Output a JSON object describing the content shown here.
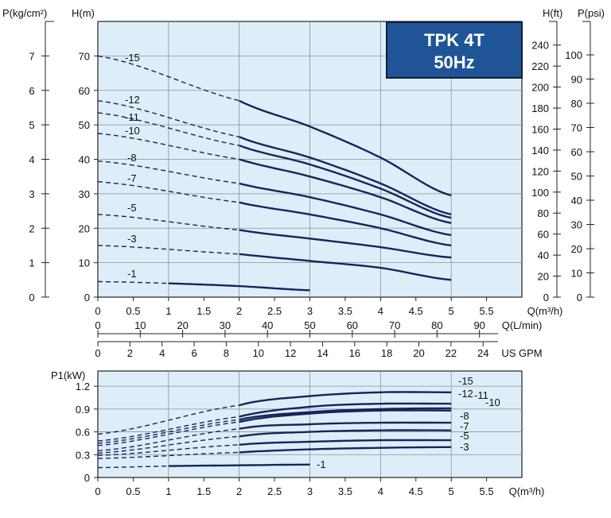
{
  "colors": {
    "plot_bg": "#deeef9",
    "grid": "#8a8f96",
    "curve": "#16255b",
    "title_bg": "#1f5596",
    "title_fg": "#ffffff"
  },
  "title": {
    "line1": "TPK 4T",
    "line2": "50Hz"
  },
  "head_chart": {
    "left_axis_labels": {
      "pressure": "P(kg/cm²)",
      "head": "H(m)"
    },
    "right_axis_labels": {
      "head_ft": "H(ft)",
      "pressure_psi": "P(psi)"
    },
    "pressure_ticks": [
      "0",
      "1",
      "2",
      "3",
      "4",
      "5",
      "6",
      "7"
    ],
    "head_ticks": [
      "0",
      "10",
      "20",
      "30",
      "40",
      "50",
      "60",
      "70"
    ],
    "ft_ticks": [
      "0",
      "20",
      "40",
      "60",
      "80",
      "100",
      "120",
      "140",
      "160",
      "180",
      "200",
      "220",
      "240"
    ],
    "psi_ticks": [
      "0",
      "10",
      "20",
      "30",
      "40",
      "50",
      "60",
      "70",
      "80",
      "90",
      "100"
    ],
    "x_m3h_ticks": [
      "0",
      "0.5",
      "1",
      "1.5",
      "2",
      "2.5",
      "3",
      "3.5",
      "4",
      "4.5",
      "5",
      "5.5"
    ],
    "x_m3h_label": "Q(m³/h)",
    "x_lmin_ticks": [
      "0",
      "10",
      "20",
      "30",
      "40",
      "50",
      "60",
      "70",
      "80",
      "90"
    ],
    "x_lmin_label": "Q(L/min)",
    "x_gpm_ticks": [
      "0",
      "2",
      "4",
      "6",
      "8",
      "10",
      "12",
      "14",
      "16",
      "18",
      "20",
      "22",
      "24"
    ],
    "x_gpm_label": "US GPM"
  },
  "power_chart": {
    "y_label": "P1(kW)",
    "y_ticks": [
      "0",
      "0.3",
      "0.6",
      "0.9",
      "1.2"
    ],
    "x_ticks": [
      "0",
      "0.5",
      "1",
      "1.5",
      "2",
      "2.5",
      "3",
      "3.5",
      "4",
      "4.5",
      "5",
      "5.5"
    ],
    "x_label": "Q(m³/h)"
  },
  "chart_data": [
    {
      "type": "line",
      "xlabel": "Q(m³/h)",
      "ylabel": "H(m)",
      "xlim": [
        0,
        6
      ],
      "ylim": [
        0,
        80
      ],
      "grid": true,
      "note": "dashed segment from Q=0 to start of solid curve",
      "series": [
        {
          "name": "-15",
          "dashed_until": 2,
          "solid_until": 5,
          "x": [
            0,
            2,
            3,
            4,
            5
          ],
          "y": [
            70,
            57,
            49.5,
            40.5,
            29.5
          ]
        },
        {
          "name": "-12",
          "dashed_until": 2,
          "solid_until": 5,
          "x": [
            0,
            2,
            3,
            4,
            5
          ],
          "y": [
            57,
            46.5,
            40.5,
            33,
            24
          ]
        },
        {
          "name": "-11",
          "dashed_until": 2,
          "solid_until": 5,
          "x": [
            0,
            2,
            3,
            4,
            5
          ],
          "y": [
            53.5,
            44,
            38.5,
            31.5,
            23
          ]
        },
        {
          "name": "-10",
          "dashed_until": 2,
          "solid_until": 5,
          "x": [
            0,
            2,
            3,
            4,
            5
          ],
          "y": [
            47.5,
            40,
            35,
            29,
            21.5
          ]
        },
        {
          "name": "-8",
          "dashed_until": 2,
          "solid_until": 5,
          "x": [
            0,
            2,
            3,
            4,
            5
          ],
          "y": [
            39.5,
            33,
            29,
            24,
            18
          ]
        },
        {
          "name": "-7",
          "dashed_until": 2,
          "solid_until": 5,
          "x": [
            0,
            2,
            3,
            4,
            5
          ],
          "y": [
            33.5,
            27.5,
            24,
            20,
            15
          ]
        },
        {
          "name": "-5",
          "dashed_until": 2,
          "solid_until": 5,
          "x": [
            0,
            2,
            3,
            4,
            5
          ],
          "y": [
            24,
            19.5,
            17,
            14.5,
            11.5
          ]
        },
        {
          "name": "-3",
          "dashed_until": 2,
          "solid_until": 5,
          "x": [
            0,
            2,
            3,
            4,
            5
          ],
          "y": [
            15,
            12.5,
            10.5,
            8.5,
            5
          ]
        },
        {
          "name": "-1",
          "dashed_until": 1,
          "solid_until": 3,
          "x": [
            0,
            1,
            2,
            3
          ],
          "y": [
            4.5,
            4,
            3.2,
            2
          ]
        }
      ]
    },
    {
      "type": "line",
      "xlabel": "Q(m³/h)",
      "ylabel": "P1(kW)",
      "xlim": [
        0,
        6
      ],
      "ylim": [
        0,
        1.4
      ],
      "grid": true,
      "series": [
        {
          "name": "-15",
          "dashed_until": 2,
          "solid_until": 5,
          "x": [
            0,
            2,
            3,
            4,
            5
          ],
          "y": [
            0.57,
            0.95,
            1.07,
            1.12,
            1.12
          ]
        },
        {
          "name": "-12",
          "dashed_until": 2,
          "solid_until": 5,
          "x": [
            0,
            2,
            3,
            4,
            5
          ],
          "y": [
            0.48,
            0.8,
            0.93,
            0.97,
            0.97
          ]
        },
        {
          "name": "-11",
          "dashed_until": 2,
          "solid_until": 5,
          "x": [
            0,
            2,
            3,
            4,
            5
          ],
          "y": [
            0.45,
            0.76,
            0.86,
            0.9,
            0.91
          ]
        },
        {
          "name": "-10",
          "dashed_until": 2,
          "solid_until": 5,
          "x": [
            0,
            2,
            3,
            4,
            5
          ],
          "y": [
            0.42,
            0.73,
            0.84,
            0.88,
            0.88
          ]
        },
        {
          "name": "-8",
          "dashed_until": 2,
          "solid_until": 5,
          "x": [
            0,
            2,
            3,
            4,
            5
          ],
          "y": [
            0.35,
            0.64,
            0.7,
            0.72,
            0.72
          ]
        },
        {
          "name": "-7",
          "dashed_until": 2,
          "solid_until": 5,
          "x": [
            0,
            2,
            3,
            4,
            5
          ],
          "y": [
            0.32,
            0.54,
            0.6,
            0.62,
            0.62
          ]
        },
        {
          "name": "-5",
          "dashed_until": 2,
          "solid_until": 5,
          "x": [
            0,
            2,
            3,
            4,
            5
          ],
          "y": [
            0.29,
            0.43,
            0.47,
            0.49,
            0.49
          ]
        },
        {
          "name": "-3",
          "dashed_until": 2,
          "solid_until": 5,
          "x": [
            0,
            2,
            3,
            4,
            5
          ],
          "y": [
            0.25,
            0.33,
            0.37,
            0.39,
            0.4
          ]
        },
        {
          "name": "-1",
          "dashed_until": 1,
          "solid_until": 3,
          "x": [
            0,
            1,
            2,
            3
          ],
          "y": [
            0.13,
            0.15,
            0.16,
            0.17
          ]
        }
      ]
    }
  ]
}
